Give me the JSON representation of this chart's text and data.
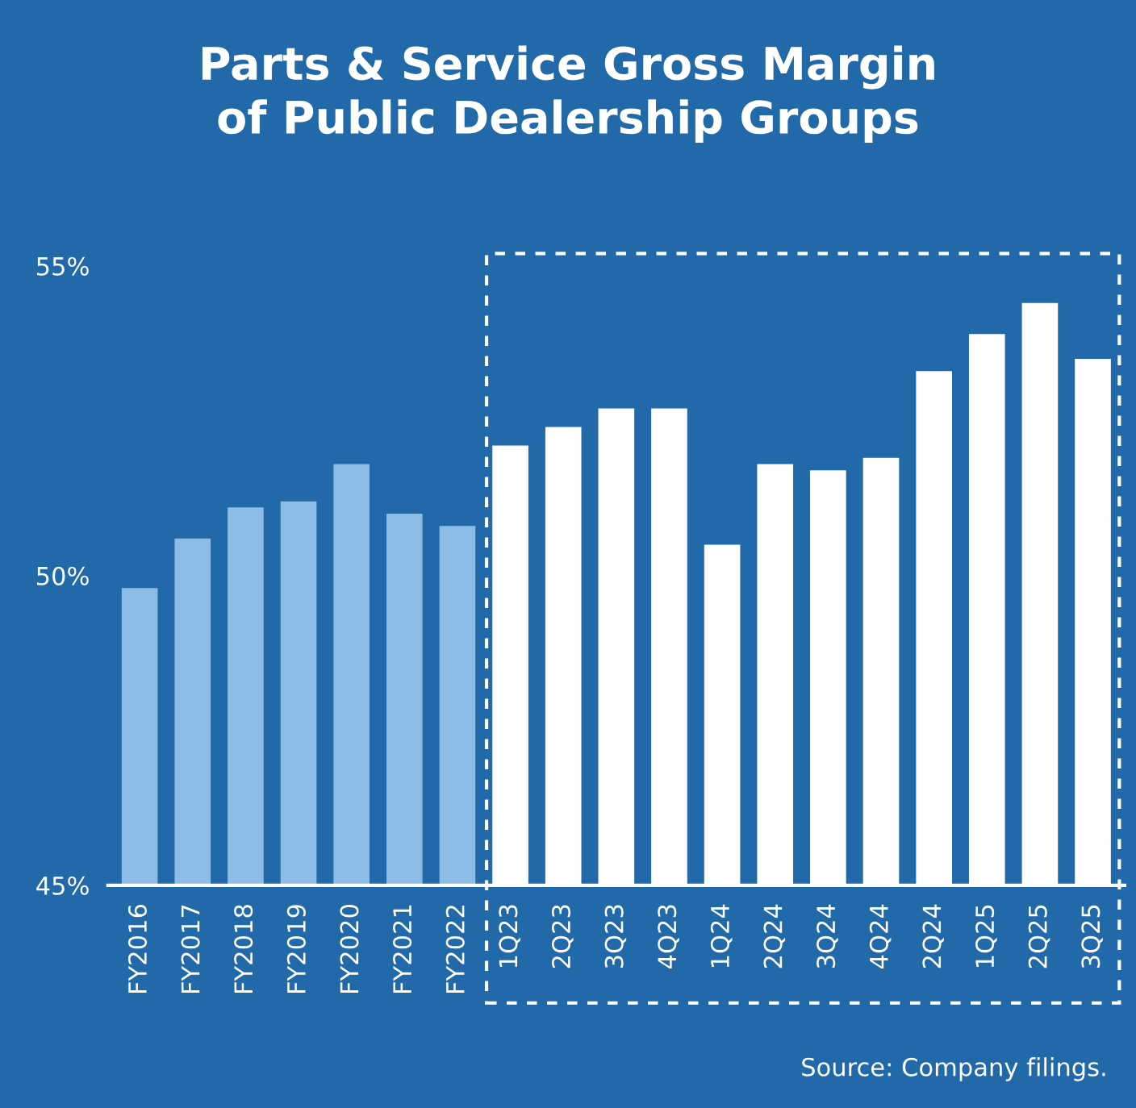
{
  "chart_data": {
    "type": "bar",
    "title": "Parts & Service Gross Margin\nof Public Dealership Groups",
    "categories": [
      "FY2016",
      "FY2017",
      "FY2018",
      "FY2019",
      "FY2020",
      "FY2021",
      "FY2022",
      "1Q23",
      "2Q23",
      "3Q23",
      "4Q23",
      "1Q24",
      "2Q24",
      "3Q24",
      "4Q24",
      "2Q24",
      "1Q25",
      "2Q25",
      "3Q25"
    ],
    "values": [
      49.8,
      50.6,
      51.1,
      51.2,
      51.8,
      51.0,
      50.8,
      52.1,
      52.4,
      52.7,
      52.7,
      50.5,
      51.8,
      51.7,
      51.9,
      53.3,
      53.9,
      54.4,
      53.5
    ],
    "colors": [
      "#8dbce6",
      "#8dbce6",
      "#8dbce6",
      "#8dbce6",
      "#8dbce6",
      "#8dbce6",
      "#8dbce6",
      "#ffffff",
      "#ffffff",
      "#ffffff",
      "#ffffff",
      "#ffffff",
      "#ffffff",
      "#ffffff",
      "#ffffff",
      "#ffffff",
      "#ffffff",
      "#ffffff",
      "#ffffff"
    ],
    "ylim": [
      45,
      55
    ],
    "yticks": [
      {
        "value": 45,
        "label": "45%"
      },
      {
        "value": 50,
        "label": "50%"
      },
      {
        "value": 55,
        "label": "55%"
      }
    ],
    "grid": false,
    "annotations": [
      "Source: Company filings."
    ]
  }
}
